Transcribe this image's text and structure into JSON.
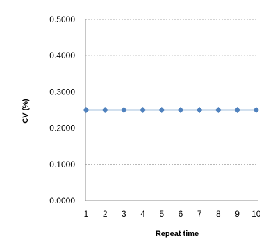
{
  "chart_data": {
    "type": "line",
    "title": "",
    "xlabel": "Repeat time",
    "ylabel": "CV (%)",
    "x": [
      1,
      2,
      3,
      4,
      5,
      6,
      7,
      8,
      9,
      10
    ],
    "x_tick_labels": [
      "1",
      "2",
      "3",
      "4",
      "5",
      "6",
      "7",
      "8",
      "9",
      "10"
    ],
    "y_tick_labels": [
      "0.0000",
      "0.1000",
      "0.2000",
      "0.3000",
      "0.4000",
      "0.5000"
    ],
    "ylim": [
      0,
      0.5
    ],
    "series": [
      {
        "values": [
          0.25,
          0.25,
          0.25,
          0.25,
          0.25,
          0.25,
          0.25,
          0.25,
          0.25,
          0.25
        ],
        "color": "#4f81bd",
        "marker": "diamond"
      }
    ],
    "grid": "horizontal-dashed",
    "legend": "none"
  }
}
